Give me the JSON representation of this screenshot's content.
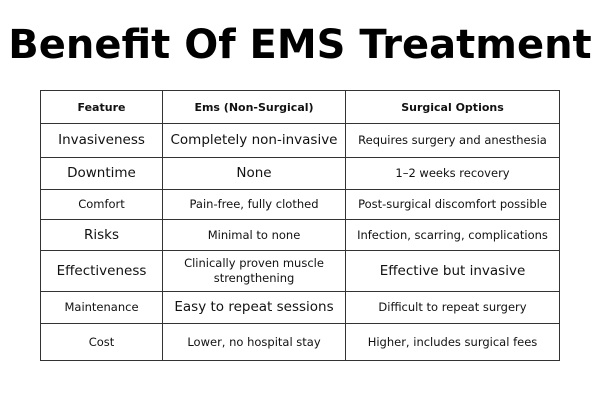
{
  "title": "Benefit Of EMS Treatment",
  "table": {
    "headers": [
      "Feature",
      "Ems (Non-Surgical)",
      "Surgical Options"
    ],
    "rows": [
      [
        "Invasiveness",
        "Completely non-invasive",
        "Requires surgery and anesthesia"
      ],
      [
        "Downtime",
        "None",
        "1–2 weeks recovery"
      ],
      [
        "Comfort",
        "Pain-free, fully clothed",
        "Post-surgical discomfort possible"
      ],
      [
        "Risks",
        "Minimal to none",
        "Infection, scarring, complications"
      ],
      [
        "Effectiveness",
        "Clinically proven muscle strengthening",
        "Effective but invasive"
      ],
      [
        "Maintenance",
        "Easy to repeat sessions",
        "Difficult to repeat surgery"
      ],
      [
        "Cost",
        "Lower, no hospital stay",
        "Higher, includes surgical fees"
      ]
    ]
  }
}
